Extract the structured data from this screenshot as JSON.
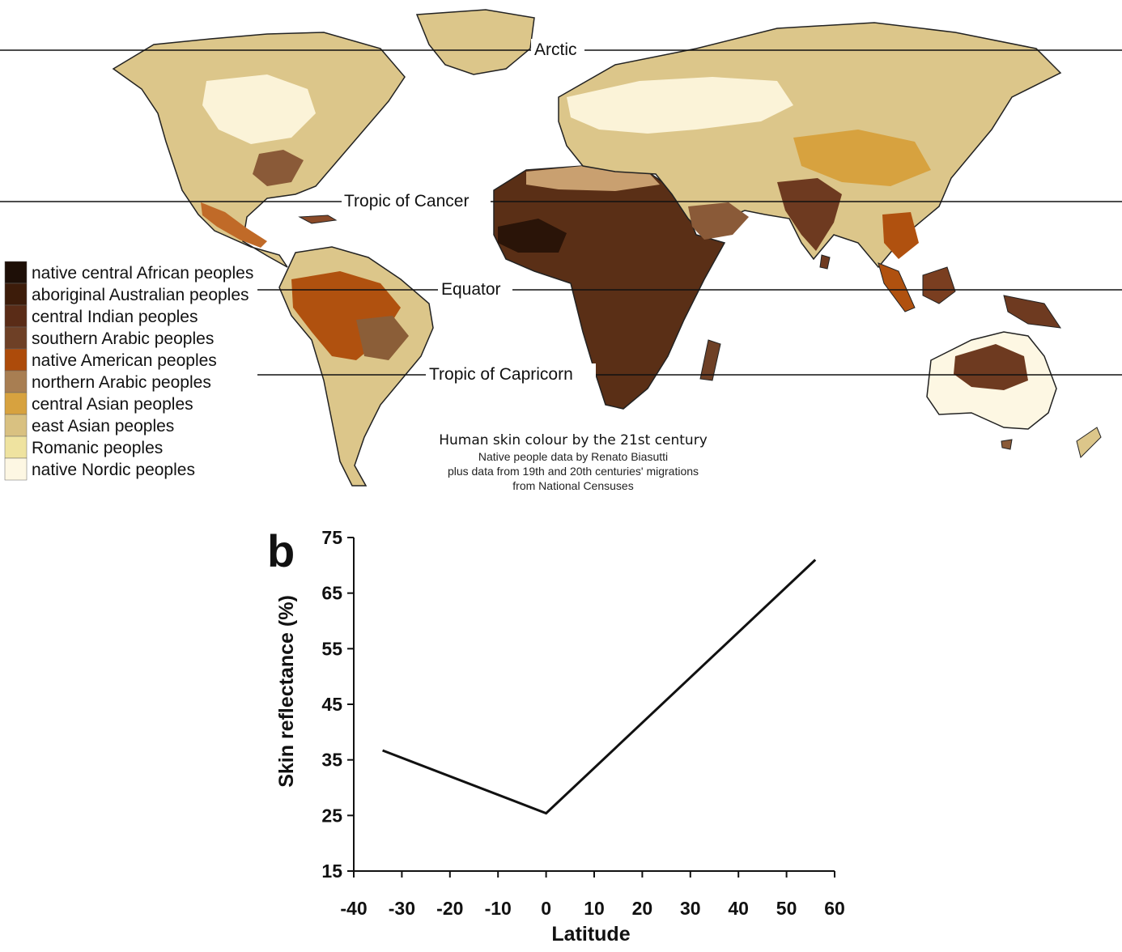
{
  "map": {
    "reference_lines": [
      {
        "id": "arctic",
        "label": "Arctic"
      },
      {
        "id": "cancer",
        "label": "Tropic of Cancer"
      },
      {
        "id": "equator",
        "label": "Equator"
      },
      {
        "id": "capricorn",
        "label": "Tropic of Capricorn"
      }
    ],
    "legend": [
      {
        "label": "native central African peoples",
        "color": "#1e0f07"
      },
      {
        "label": "aboriginal Australian peoples",
        "color": "#3d1c0a"
      },
      {
        "label": "central Indian peoples",
        "color": "#5a2c17"
      },
      {
        "label": "southern Arabic peoples",
        "color": "#6e4026"
      },
      {
        "label": "native American peoples",
        "color": "#ad4b0a"
      },
      {
        "label": "northern Arabic peoples",
        "color": "#a87e52"
      },
      {
        "label": "central Asian peoples",
        "color": "#d7a23f"
      },
      {
        "label": "east Asian peoples",
        "color": "#d9c181"
      },
      {
        "label": "Romanic peoples",
        "color": "#efe3a0"
      },
      {
        "label": "native Nordic peoples",
        "color": "#fdf7e3"
      }
    ],
    "caption": {
      "title": "Human skin colour by the 21st century",
      "lines": [
        "Native people data by Renato Biasutti",
        "plus data from 19th and 20th centuries' migrations",
        "from National Censuses"
      ]
    }
  },
  "chart_data": {
    "type": "line",
    "panel_label": "b",
    "xlabel": "Latitude",
    "ylabel": "Skin reflectance (%)",
    "xlim": [
      -40,
      60
    ],
    "ylim": [
      15,
      75
    ],
    "xticks": [
      -40,
      -30,
      -20,
      -10,
      0,
      10,
      20,
      30,
      40,
      50,
      60
    ],
    "yticks": [
      15,
      25,
      35,
      45,
      55,
      65,
      75
    ],
    "series": [
      {
        "x": [
          -34,
          0,
          56
        ],
        "y": [
          36.7,
          25.4,
          71
        ]
      }
    ],
    "grid": false,
    "legend": "none"
  }
}
